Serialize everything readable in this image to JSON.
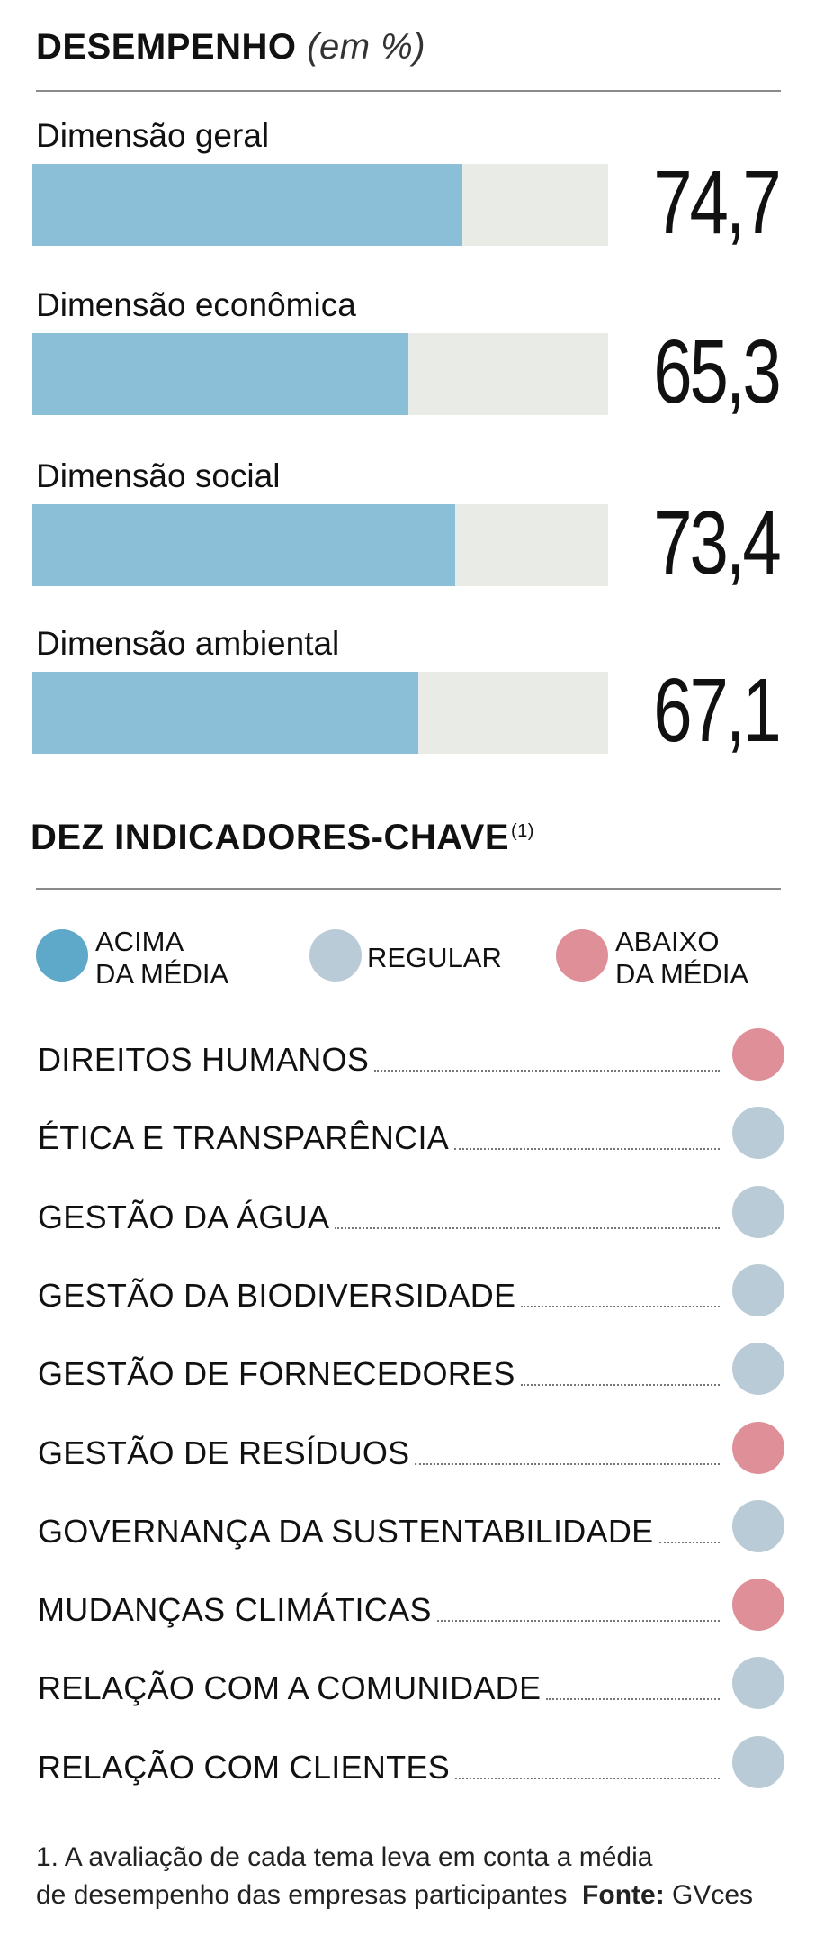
{
  "performance": {
    "title": "DESEMPENHO",
    "unit": "(em %)"
  },
  "chart_data": {
    "type": "bar",
    "orientation": "horizontal",
    "title": "DESEMPENHO",
    "unit": "(em %)",
    "categories": [
      "Dimensão geral",
      "Dimensão econômica",
      "Dimensão social",
      "Dimensão ambiental"
    ],
    "values": [
      74.7,
      65.3,
      73.4,
      67.1
    ],
    "value_labels": [
      "74,7",
      "65,3",
      "73,4",
      "67,1"
    ],
    "xlim": [
      0,
      100
    ],
    "grid": false,
    "bar_color": "#8bbfd8",
    "track_color": "#e9ebe6"
  },
  "indicators": {
    "title": "DEZ INDICADORES-CHAVE",
    "footnote_mark": "(1)",
    "legend": [
      {
        "line1": "ACIMA",
        "line2": "DA MÉDIA",
        "status": "above",
        "color": "#5ea8c9"
      },
      {
        "line1": "REGULAR",
        "line2": "",
        "status": "regular",
        "color": "#b9cbd6"
      },
      {
        "line1": "ABAIXO",
        "line2": "DA MÉDIA",
        "status": "below",
        "color": "#df8f98"
      }
    ],
    "items": [
      {
        "label": "DIREITOS HUMANOS",
        "status": "below"
      },
      {
        "label": "ÉTICA E TRANSPARÊNCIA",
        "status": "regular"
      },
      {
        "label": "GESTÃO DA ÁGUA",
        "status": "regular"
      },
      {
        "label": "GESTÃO DA BIODIVERSIDADE",
        "status": "regular"
      },
      {
        "label": "GESTÃO DE FORNECEDORES",
        "status": "regular"
      },
      {
        "label": "GESTÃO DE RESÍDUOS",
        "status": "below"
      },
      {
        "label": "GOVERNANÇA DA SUSTENTABILIDADE",
        "status": "regular"
      },
      {
        "label": "MUDANÇAS CLIMÁTICAS",
        "status": "below"
      },
      {
        "label": "RELAÇÃO COM A COMUNIDADE",
        "status": "regular"
      },
      {
        "label": "RELAÇÃO COM CLIENTES",
        "status": "regular"
      }
    ]
  },
  "footer": {
    "note_line1": "1. A avaliação de cada tema leva em conta a média",
    "note_line2": "de desempenho das empresas participantes",
    "source_label": "Fonte:",
    "source_value": "GVces"
  }
}
